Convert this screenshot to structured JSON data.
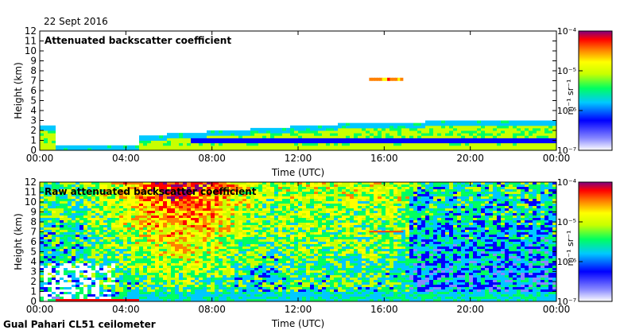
{
  "date": "22 Sept 2016",
  "footer": "Gual Pahari CL51 ceilometer",
  "chart_data": [
    {
      "type": "heatmap",
      "title": "Attenuated backscatter coefficient",
      "xlabel": "Time (UTC)",
      "ylabel": "Height (km)",
      "xticks": [
        "00:00",
        "04:00",
        "08:00",
        "12:00",
        "16:00",
        "20:00",
        "00:00"
      ],
      "yticks": [
        "0",
        "1",
        "2",
        "3",
        "4",
        "5",
        "6",
        "7",
        "8",
        "9",
        "10",
        "11",
        "12"
      ],
      "xlim_hours": [
        0,
        24
      ],
      "ylim_km": [
        0,
        12
      ],
      "colorbar": {
        "label": "m⁻¹ sr⁻¹",
        "scale": "log",
        "range": [
          1e-07,
          0.0001
        ],
        "ticks": [
          "10⁻⁴",
          "10⁻⁵",
          "10⁻⁶",
          "10⁻⁷"
        ]
      }
    },
    {
      "type": "heatmap",
      "title": "Raw attenuated backscatter coefficient",
      "xlabel": "Time (UTC)",
      "ylabel": "Height (km)",
      "xticks": [
        "00:00",
        "04:00",
        "08:00",
        "12:00",
        "16:00",
        "20:00",
        "00:00"
      ],
      "yticks": [
        "0",
        "1",
        "2",
        "3",
        "4",
        "5",
        "6",
        "7",
        "8",
        "9",
        "10",
        "11",
        "12"
      ],
      "xlim_hours": [
        0,
        24
      ],
      "ylim_km": [
        0,
        12
      ],
      "colorbar": {
        "label": "m⁻¹ sr⁻¹",
        "scale": "log",
        "range": [
          1e-07,
          0.0001
        ],
        "ticks": [
          "10⁻⁴",
          "10⁻⁵",
          "10⁻⁶",
          "10⁻⁷"
        ]
      }
    }
  ]
}
